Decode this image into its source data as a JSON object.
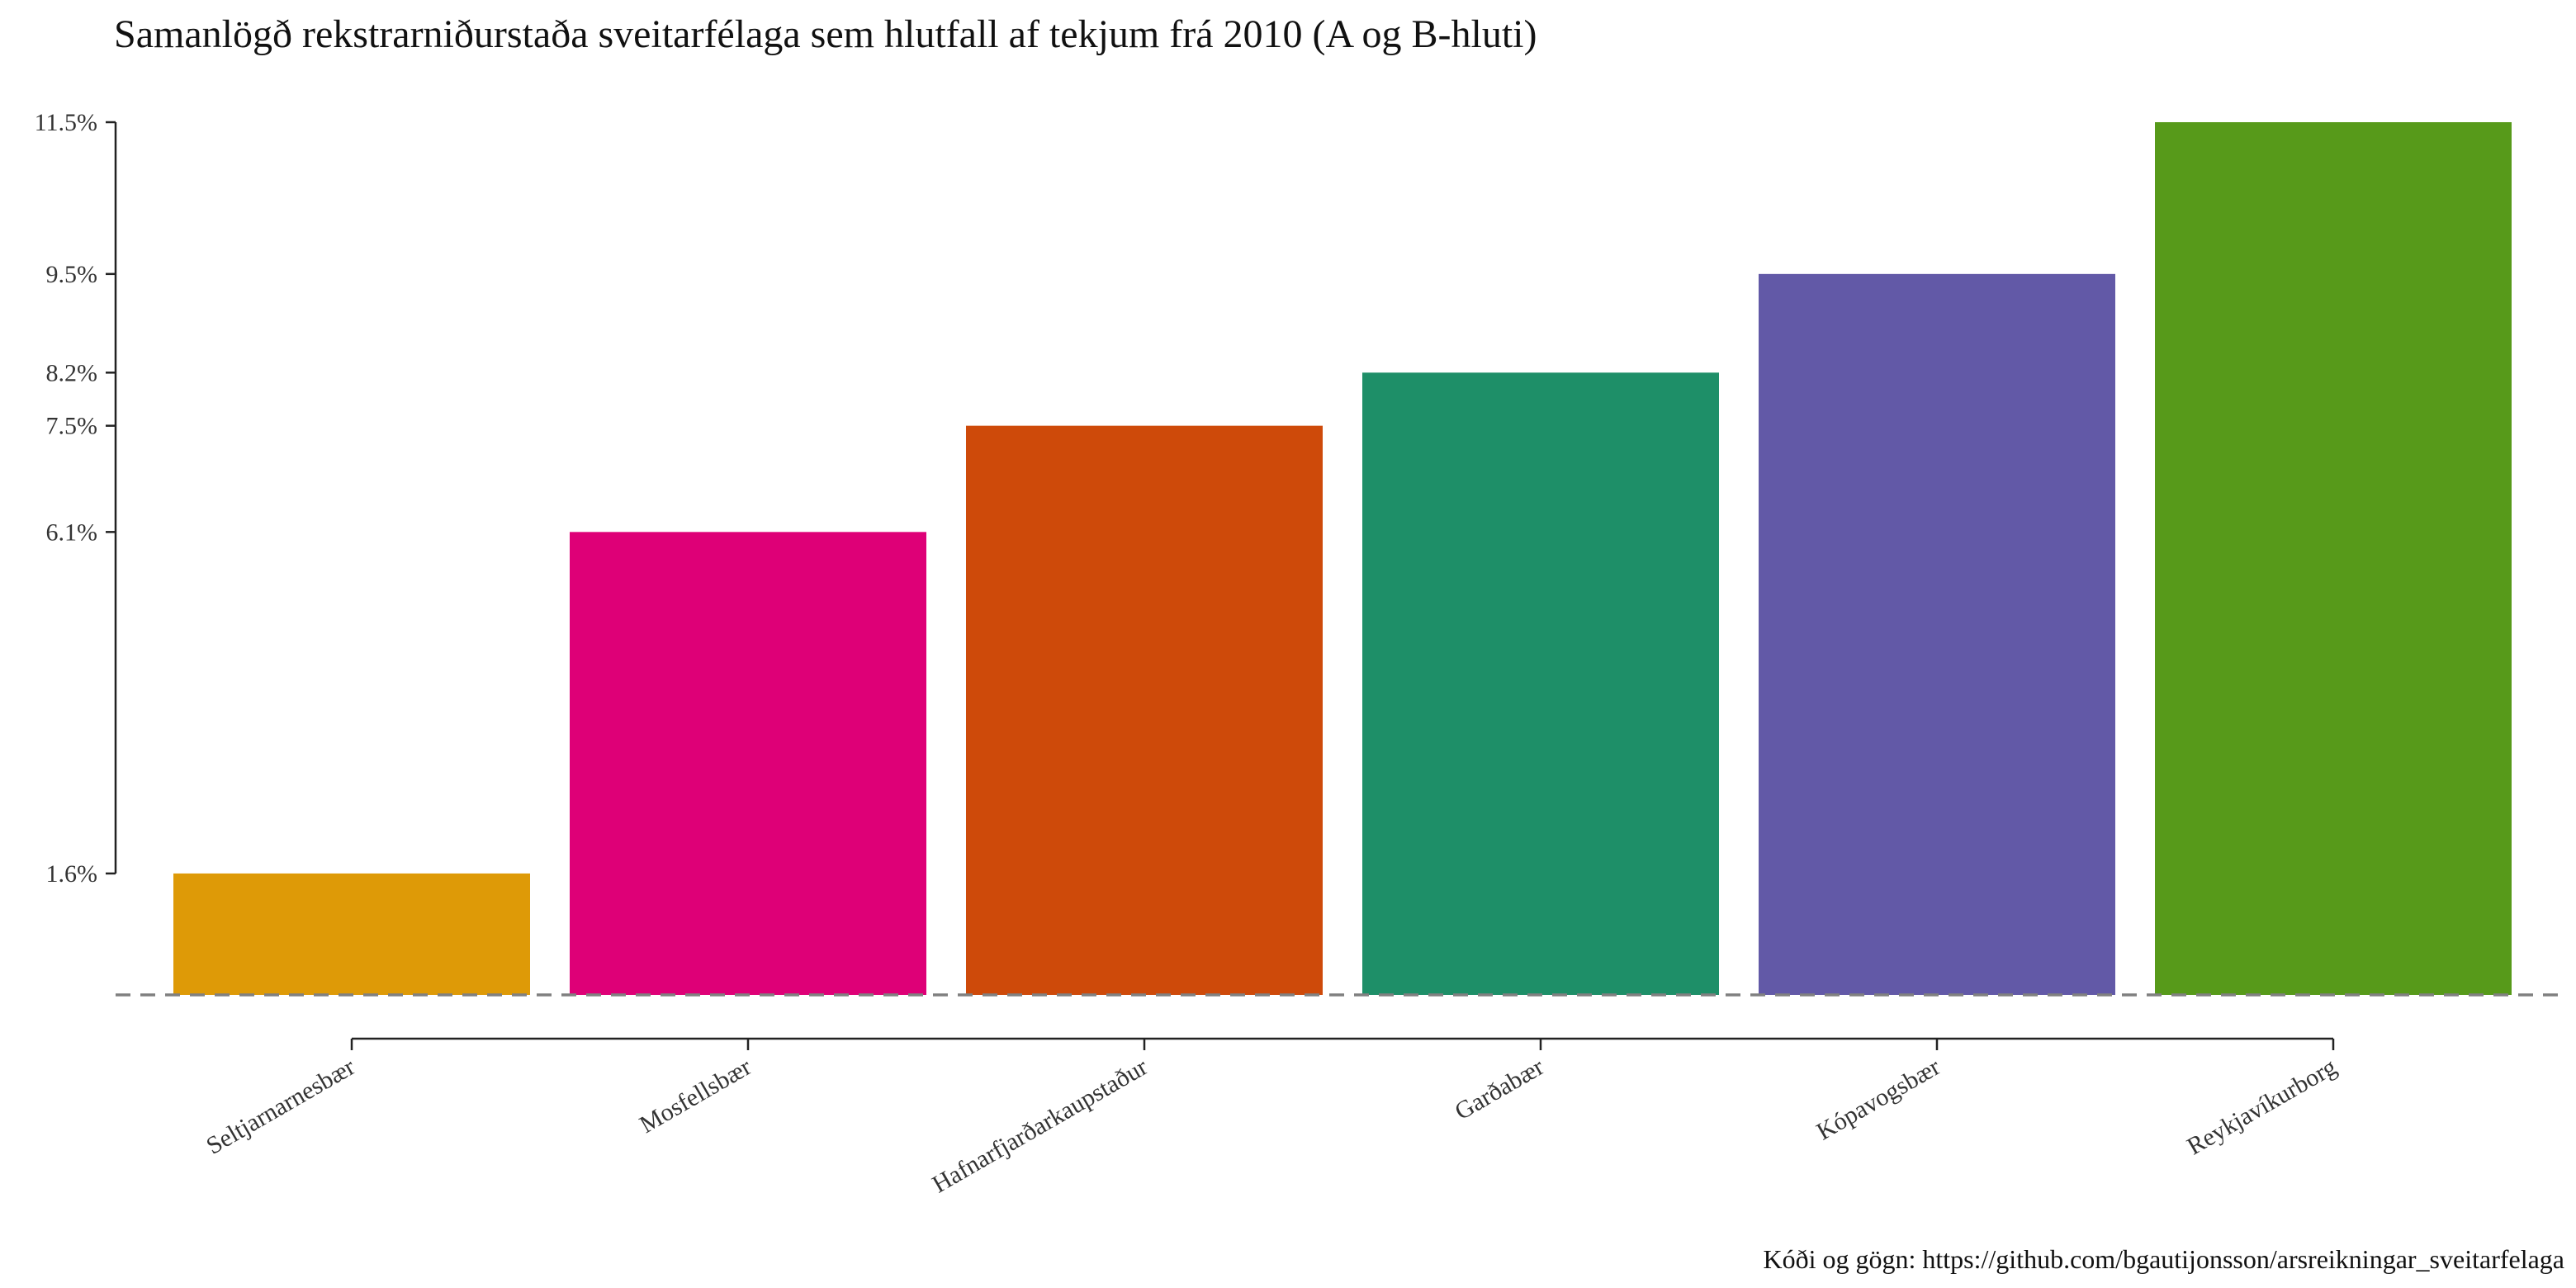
{
  "chart_data": {
    "type": "bar",
    "title": "Samanlögð rekstrarniðurstaða sveitarfélaga sem hlutfall af tekjum frá 2010 (A og B-hluti)",
    "caption": "Kóði og gögn: https://github.com/bgautijonsson/arsreikningar_sveitarfelaga",
    "xlabel": "",
    "ylabel": "",
    "categories": [
      "Seltjarnarnesbær",
      "Mosfellsbær",
      "Hafnarfjarðarkaupstaður",
      "Garðabær",
      "Kópavogsbær",
      "Reykjavíkurborg"
    ],
    "values": [
      1.6,
      6.1,
      7.5,
      8.2,
      9.5,
      11.5
    ],
    "value_unit": "%",
    "colors": [
      "#DE9A07",
      "#DE0077",
      "#CE4A0A",
      "#1E8F68",
      "#6259A7",
      "#579A1A"
    ],
    "y_ticks": [
      1.6,
      6.1,
      7.5,
      8.2,
      9.5,
      11.5
    ],
    "y_tick_labels": [
      "1.6%",
      "6.1%",
      "7.5%",
      "8.2%",
      "9.5%",
      "11.5%"
    ],
    "ylim": [
      0,
      11.5
    ],
    "reference_line": {
      "y": 0,
      "style": "dashed",
      "color": "#808080"
    },
    "grid": false,
    "legend": "none"
  }
}
